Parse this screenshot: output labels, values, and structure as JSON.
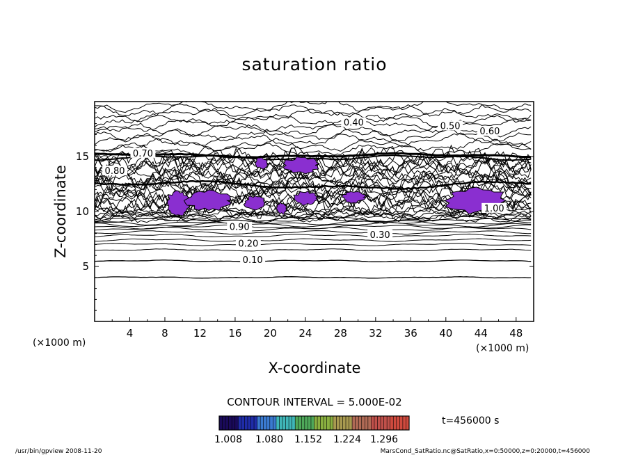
{
  "chart_data": {
    "type": "contour",
    "title": "saturation ratio",
    "xlabel": "X-coordinate",
    "ylabel": "Z-coordinate",
    "x_unit": "(×1000 m)",
    "y_unit": "(×1000 m)",
    "xlim": [
      0,
      50
    ],
    "ylim": [
      0,
      20
    ],
    "x_ticks": [
      "4",
      "8",
      "12",
      "16",
      "20",
      "24",
      "28",
      "32",
      "36",
      "40",
      "44",
      "48"
    ],
    "y_ticks": [
      "5",
      "10",
      "15"
    ],
    "contour_interval_label": "CONTOUR INTERVAL = 5.000E-02",
    "contour_labels": [
      {
        "text": "0.10",
        "x": 18.0,
        "z": 5.5
      },
      {
        "text": "0.20",
        "x": 17.5,
        "z": 7.0
      },
      {
        "text": "0.30",
        "x": 32.5,
        "z": 7.8
      },
      {
        "text": "0.40",
        "x": 29.5,
        "z": 18.0
      },
      {
        "text": "0.50",
        "x": 40.5,
        "z": 17.7
      },
      {
        "text": "0.60",
        "x": 45.0,
        "z": 17.2
      },
      {
        "text": "0.70",
        "x": 5.5,
        "z": 15.2
      },
      {
        "text": "0.80",
        "x": 2.3,
        "z": 13.6
      },
      {
        "text": "0.90",
        "x": 16.5,
        "z": 8.5
      },
      {
        "text": "1.00",
        "x": 45.5,
        "z": 10.2
      }
    ],
    "supersaturated_patches": [
      {
        "cx": 9.5,
        "cz": 10.7,
        "rx": 1.3,
        "rz": 1.2
      },
      {
        "cx": 13.0,
        "cz": 11.0,
        "rx": 2.5,
        "rz": 0.9
      },
      {
        "cx": 18.3,
        "cz": 10.8,
        "rx": 1.2,
        "rz": 0.6
      },
      {
        "cx": 19.0,
        "cz": 14.4,
        "rx": 0.7,
        "rz": 0.5
      },
      {
        "cx": 23.5,
        "cz": 14.2,
        "rx": 2.0,
        "rz": 0.7
      },
      {
        "cx": 21.3,
        "cz": 10.3,
        "rx": 0.6,
        "rz": 0.5
      },
      {
        "cx": 24.0,
        "cz": 11.2,
        "rx": 1.3,
        "rz": 0.6
      },
      {
        "cx": 29.5,
        "cz": 11.3,
        "rx": 1.3,
        "rz": 0.5
      },
      {
        "cx": 43.5,
        "cz": 11.0,
        "rx": 3.5,
        "rz": 1.1
      }
    ],
    "colorbar": {
      "ticks": [
        "1.008",
        "1.080",
        "1.152",
        "1.224",
        "1.296"
      ],
      "colors": [
        "#1a0a5a",
        "#1f2ca8",
        "#3a7ad0",
        "#3fb6b8",
        "#4ea85a",
        "#8ab040",
        "#a89a50",
        "#b06a55",
        "#c0504a",
        "#d04a3e"
      ]
    },
    "patch_color": "#8a2fd0"
  },
  "time_label": "t=456000 s",
  "footer_left": "/usr/bin/gpview   2008-11-20",
  "footer_right": "MarsCond_SatRatio.nc@SatRatio,x=0:50000,z=0:20000,t=456000"
}
